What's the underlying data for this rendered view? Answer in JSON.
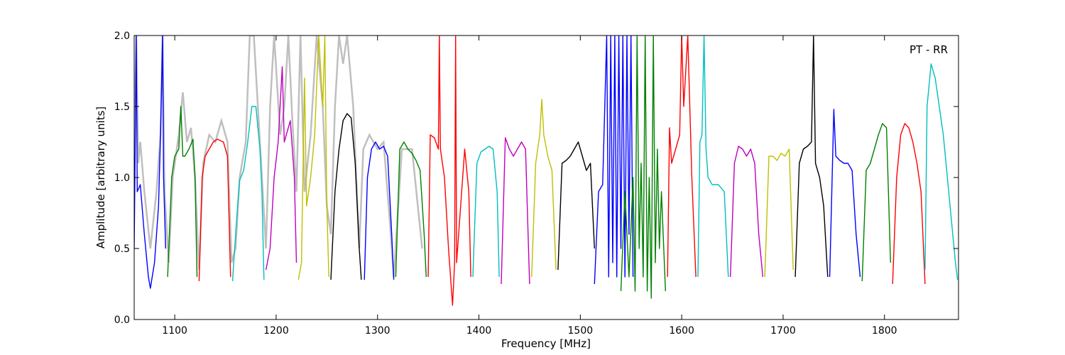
{
  "chart_data": {
    "type": "line",
    "title": "",
    "annotation": "PT - RR",
    "xlabel": "Frequency [MHz]",
    "ylabel": "Amplitude [arbitrary units]",
    "xlim": [
      1060,
      1873
    ],
    "ylim": [
      0.0,
      2.0
    ],
    "xticks": [
      1100,
      1200,
      1300,
      1400,
      1500,
      1600,
      1700,
      1800
    ],
    "yticks": [
      0.0,
      0.5,
      1.0,
      1.5,
      2.0
    ],
    "ytick_labels": [
      "0.0",
      "0.5",
      "1.0",
      "1.5",
      "2.0"
    ],
    "grid": false,
    "legend": "none",
    "background": {
      "color": "#bfbfbf",
      "description_points": [
        [
          1060,
          1.2
        ],
        [
          1062,
          2.0
        ],
        [
          1064,
          1.1
        ],
        [
          1066,
          1.25
        ],
        [
          1070,
          0.9
        ],
        [
          1076,
          0.5
        ],
        [
          1082,
          0.9
        ],
        [
          1086,
          1.3
        ],
        [
          1088,
          2.0
        ],
        [
          1090,
          0.9
        ],
        [
          1094,
          0.4
        ],
        [
          1098,
          1.0
        ],
        [
          1104,
          1.3
        ],
        [
          1108,
          1.6
        ],
        [
          1112,
          1.25
        ],
        [
          1116,
          1.35
        ],
        [
          1120,
          1.0
        ],
        [
          1124,
          0.35
        ],
        [
          1128,
          1.1
        ],
        [
          1134,
          1.3
        ],
        [
          1140,
          1.25
        ],
        [
          1146,
          1.4
        ],
        [
          1152,
          1.25
        ],
        [
          1156,
          0.4
        ],
        [
          1160,
          0.5
        ],
        [
          1164,
          1.0
        ],
        [
          1170,
          1.25
        ],
        [
          1174,
          2.0
        ],
        [
          1178,
          2.0
        ],
        [
          1182,
          1.5
        ],
        [
          1186,
          1.0
        ],
        [
          1190,
          0.5
        ],
        [
          1194,
          1.5
        ],
        [
          1198,
          2.0
        ],
        [
          1204,
          1.3
        ],
        [
          1208,
          1.5
        ],
        [
          1212,
          2.0
        ],
        [
          1216,
          1.4
        ],
        [
          1220,
          0.9
        ],
        [
          1224,
          2.0
        ],
        [
          1228,
          0.9
        ],
        [
          1234,
          1.3
        ],
        [
          1240,
          2.0
        ],
        [
          1246,
          1.5
        ],
        [
          1250,
          0.8
        ],
        [
          1254,
          0.6
        ],
        [
          1258,
          1.5
        ],
        [
          1262,
          2.0
        ],
        [
          1266,
          1.8
        ],
        [
          1270,
          2.0
        ],
        [
          1276,
          1.5
        ],
        [
          1282,
          0.5
        ],
        [
          1286,
          1.2
        ],
        [
          1292,
          1.3
        ],
        [
          1300,
          1.2
        ],
        [
          1306,
          1.25
        ],
        [
          1312,
          0.7
        ],
        [
          1316,
          0.3
        ],
        [
          1324,
          1.2
        ],
        [
          1334,
          1.2
        ],
        [
          1344,
          0.5
        ]
      ]
    },
    "series": [
      {
        "color": "#0000ff",
        "x": [
          1060,
          1062,
          1063,
          1066,
          1070,
          1074,
          1076,
          1080,
          1084,
          1086,
          1088,
          1089,
          1091
        ],
        "y": [
          0.5,
          2.0,
          0.9,
          0.95,
          0.6,
          0.3,
          0.22,
          0.4,
          0.8,
          1.3,
          2.0,
          1.0,
          0.5
        ]
      },
      {
        "color": "#008000",
        "x": [
          1093,
          1097,
          1100,
          1104,
          1106,
          1108,
          1110,
          1114,
          1118,
          1120,
          1122
        ],
        "y": [
          0.3,
          1.0,
          1.15,
          1.2,
          1.5,
          1.15,
          1.15,
          1.2,
          1.27,
          1.0,
          0.3
        ]
      },
      {
        "color": "#ff0000",
        "x": [
          1124,
          1127,
          1130,
          1134,
          1138,
          1142,
          1148,
          1152,
          1155
        ],
        "y": [
          0.27,
          1.0,
          1.15,
          1.2,
          1.25,
          1.27,
          1.25,
          1.15,
          0.3
        ]
      },
      {
        "color": "#00bfbf",
        "x": [
          1157,
          1161,
          1164,
          1168,
          1172,
          1176,
          1180,
          1184,
          1186,
          1188
        ],
        "y": [
          0.27,
          0.7,
          0.98,
          1.05,
          1.25,
          1.5,
          1.5,
          1.2,
          0.9,
          0.28
        ]
      },
      {
        "color": "#bf00bf",
        "x": [
          1190,
          1194,
          1198,
          1202,
          1206,
          1208,
          1210,
          1214,
          1218,
          1220
        ],
        "y": [
          0.35,
          0.5,
          1.0,
          1.25,
          1.78,
          1.25,
          1.3,
          1.4,
          1.0,
          0.4
        ]
      },
      {
        "color": "#bfbf00",
        "x": [
          1222,
          1225,
          1228,
          1230,
          1234,
          1238,
          1242,
          1246,
          1248,
          1250,
          1252
        ],
        "y": [
          0.28,
          0.4,
          1.7,
          0.8,
          1.0,
          1.3,
          2.0,
          1.5,
          2.0,
          0.8,
          0.3
        ]
      },
      {
        "color": "#000000",
        "x": [
          1254,
          1258,
          1262,
          1266,
          1270,
          1274,
          1278,
          1282,
          1284
        ],
        "y": [
          0.28,
          0.9,
          1.2,
          1.4,
          1.45,
          1.42,
          1.1,
          0.5,
          0.28
        ]
      },
      {
        "color": "#0000ff",
        "x": [
          1287,
          1290,
          1294,
          1298,
          1302,
          1306,
          1310,
          1314,
          1316
        ],
        "y": [
          0.28,
          1.0,
          1.2,
          1.25,
          1.2,
          1.22,
          1.15,
          0.6,
          0.28
        ]
      },
      {
        "color": "#008000",
        "x": [
          1318,
          1322,
          1326,
          1330,
          1334,
          1338,
          1342,
          1346,
          1348
        ],
        "y": [
          0.3,
          1.2,
          1.25,
          1.2,
          1.17,
          1.12,
          1.05,
          0.6,
          0.3
        ]
      },
      {
        "color": "#ff0000",
        "x": [
          1350,
          1352,
          1356,
          1360,
          1361,
          1362,
          1366,
          1370,
          1374,
          1376,
          1377,
          1378,
          1382,
          1386,
          1390,
          1392
        ],
        "y": [
          0.3,
          1.3,
          1.28,
          1.2,
          2.0,
          1.2,
          1.0,
          0.5,
          0.1,
          0.4,
          2.0,
          0.4,
          0.8,
          1.2,
          0.9,
          0.3
        ]
      },
      {
        "color": "#00bfbf",
        "x": [
          1394,
          1398,
          1402,
          1406,
          1410,
          1414,
          1418,
          1420
        ],
        "y": [
          0.3,
          1.1,
          1.18,
          1.2,
          1.22,
          1.2,
          0.9,
          0.3
        ]
      },
      {
        "color": "#bf00bf",
        "x": [
          1422,
          1426,
          1430,
          1434,
          1438,
          1442,
          1446,
          1450
        ],
        "y": [
          0.25,
          1.28,
          1.2,
          1.15,
          1.2,
          1.25,
          1.2,
          0.25
        ]
      },
      {
        "color": "#bfbf00",
        "x": [
          1452,
          1456,
          1460,
          1462,
          1464,
          1468,
          1472,
          1476
        ],
        "y": [
          0.3,
          1.1,
          1.3,
          1.55,
          1.3,
          1.15,
          1.05,
          0.35
        ]
      },
      {
        "color": "#000000",
        "x": [
          1478,
          1482,
          1486,
          1490,
          1494,
          1498,
          1502,
          1506,
          1510,
          1514
        ],
        "y": [
          0.35,
          1.1,
          1.12,
          1.15,
          1.2,
          1.25,
          1.15,
          1.05,
          1.1,
          0.5
        ]
      },
      {
        "color": "#0000ff",
        "x": [
          1514,
          1518,
          1522,
          1526,
          1528,
          1530,
          1532,
          1534,
          1536,
          1538,
          1540,
          1542,
          1544,
          1546,
          1548,
          1550,
          1552
        ],
        "y": [
          0.25,
          0.9,
          0.95,
          2.0,
          0.3,
          2.0,
          0.4,
          2.0,
          0.3,
          2.0,
          0.5,
          2.0,
          0.3,
          2.0,
          0.6,
          2.0,
          0.3
        ]
      },
      {
        "color": "#008000",
        "x": [
          1540,
          1544,
          1548,
          1552,
          1554,
          1556,
          1558,
          1560,
          1562,
          1564,
          1566,
          1568,
          1570,
          1572,
          1574,
          1576,
          1578,
          1580,
          1584
        ],
        "y": [
          0.2,
          0.9,
          0.3,
          1.0,
          0.2,
          2.0,
          0.5,
          1.1,
          0.3,
          2.0,
          0.2,
          1.0,
          0.15,
          2.0,
          0.4,
          1.2,
          0.5,
          0.9,
          0.2
        ]
      },
      {
        "color": "#ff0000",
        "x": [
          1586,
          1588,
          1590,
          1594,
          1598,
          1600,
          1602,
          1606,
          1610,
          1614
        ],
        "y": [
          0.3,
          1.35,
          1.1,
          1.2,
          1.3,
          2.0,
          1.5,
          2.0,
          1.0,
          0.3
        ]
      },
      {
        "color": "#00bfbf",
        "x": [
          1616,
          1618,
          1620,
          1622,
          1624,
          1626,
          1630,
          1636,
          1642,
          1646
        ],
        "y": [
          0.3,
          1.25,
          1.3,
          2.0,
          1.2,
          1.0,
          0.95,
          0.95,
          0.9,
          0.3
        ]
      },
      {
        "color": "#bf00bf",
        "x": [
          1648,
          1652,
          1656,
          1660,
          1664,
          1668,
          1672,
          1676,
          1680
        ],
        "y": [
          0.3,
          1.1,
          1.22,
          1.2,
          1.15,
          1.2,
          1.1,
          0.6,
          0.3
        ]
      },
      {
        "color": "#bfbf00",
        "x": [
          1682,
          1686,
          1690,
          1694,
          1698,
          1702,
          1706,
          1710
        ],
        "y": [
          0.3,
          1.15,
          1.15,
          1.12,
          1.17,
          1.15,
          1.2,
          0.35
        ]
      },
      {
        "color": "#000000",
        "x": [
          1712,
          1716,
          1720,
          1724,
          1728,
          1730,
          1732,
          1736,
          1740,
          1744
        ],
        "y": [
          0.3,
          1.1,
          1.2,
          1.22,
          1.25,
          2.0,
          1.1,
          1.0,
          0.8,
          0.3
        ]
      },
      {
        "color": "#0000ff",
        "x": [
          1746,
          1750,
          1752,
          1756,
          1760,
          1764,
          1768,
          1772,
          1776
        ],
        "y": [
          0.3,
          1.48,
          1.15,
          1.12,
          1.1,
          1.1,
          1.05,
          0.6,
          0.3
        ]
      },
      {
        "color": "#008000",
        "x": [
          1778,
          1782,
          1786,
          1790,
          1794,
          1798,
          1802,
          1806
        ],
        "y": [
          0.27,
          1.05,
          1.1,
          1.2,
          1.3,
          1.38,
          1.35,
          0.4
        ]
      },
      {
        "color": "#ff0000",
        "x": [
          1808,
          1812,
          1816,
          1820,
          1824,
          1828,
          1832,
          1836,
          1840
        ],
        "y": [
          0.25,
          1.0,
          1.3,
          1.38,
          1.35,
          1.25,
          1.1,
          0.9,
          0.25
        ]
      },
      {
        "color": "#00bfbf",
        "x": [
          1840,
          1842,
          1846,
          1850,
          1854,
          1858,
          1862,
          1866,
          1870,
          1872
        ],
        "y": [
          0.35,
          1.5,
          1.8,
          1.7,
          1.5,
          1.3,
          1.0,
          0.7,
          0.4,
          0.28
        ]
      }
    ]
  }
}
